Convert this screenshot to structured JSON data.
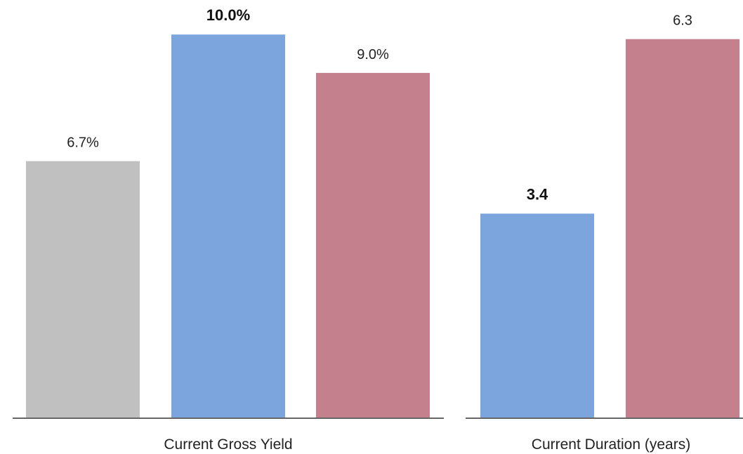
{
  "chart_data": [
    {
      "type": "bar",
      "xlabel": "Current Gross Yield",
      "values": [
        6.7,
        10.0,
        9.0
      ],
      "labels": [
        "6.7%",
        "10.0%",
        "9.0%"
      ],
      "bold": [
        false,
        true,
        false
      ],
      "colors": [
        "#c0c0c0",
        "#7ba5dc",
        "#c4808d"
      ],
      "ylim": [
        0,
        10.9
      ]
    },
    {
      "type": "bar",
      "xlabel": "Current Duration (years)",
      "values": [
        3.4,
        6.3
      ],
      "labels": [
        "3.4",
        "6.3"
      ],
      "bold": [
        true,
        false
      ],
      "colors": [
        "#7ba5dc",
        "#c4808d"
      ],
      "ylim": [
        0,
        6.95
      ]
    }
  ]
}
